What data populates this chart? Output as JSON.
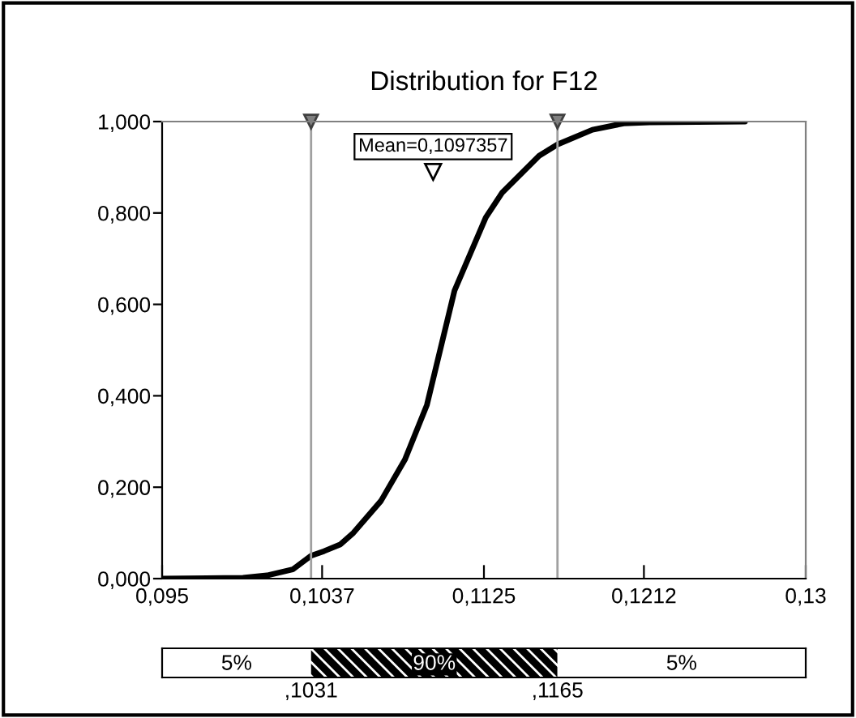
{
  "chart_data": [
    {
      "type": "line",
      "title": "Distribution for F12",
      "x": [
        0.095,
        0.0994,
        0.1007,
        0.1021,
        0.1031,
        0.1038,
        0.1047,
        0.1054,
        0.1069,
        0.1082,
        0.1094,
        0.1109,
        0.1126,
        0.1135,
        0.1155,
        0.1165,
        0.1184,
        0.1201,
        0.1215,
        0.1267
      ],
      "series": [
        {
          "color": "#000000",
          "values": [
            0.0,
            0.002,
            0.007,
            0.02,
            0.05,
            0.06,
            0.075,
            0.1,
            0.17,
            0.26,
            0.38,
            0.63,
            0.79,
            0.845,
            0.925,
            0.95,
            0.982,
            0.996,
            0.998,
            1.0
          ]
        }
      ],
      "xlim": [
        0.095,
        0.13
      ],
      "xticks": [
        {
          "value": 0.095,
          "label": "0,095"
        },
        {
          "value": 0.1037,
          "label": "0,1037"
        },
        {
          "value": 0.1125,
          "label": "0,1125"
        },
        {
          "value": 0.1212,
          "label": "0,1212"
        },
        {
          "value": 0.13,
          "label": "0,13"
        }
      ],
      "ylim": [
        0,
        1
      ],
      "yticks": [
        {
          "value": 0,
          "label": "0,000"
        },
        {
          "value": 0.2,
          "label": "0,200"
        },
        {
          "value": 0.4,
          "label": "0,400"
        },
        {
          "value": 0.6,
          "label": "0,600"
        },
        {
          "value": 0.8,
          "label": "0,800"
        },
        {
          "value": 1,
          "label": "1,000"
        }
      ],
      "ref_lines": [
        {
          "axis": "x",
          "value": 0.1031,
          "color": "#a0a0a0"
        },
        {
          "axis": "x",
          "value": 0.1165,
          "color": "#a0a0a0"
        }
      ],
      "annotations": [
        {
          "text": "Mean=0,1097357",
          "x": 0.1097357,
          "y": 0.89
        }
      ],
      "grid": false,
      "legend": false,
      "marker": "none",
      "line_style": "solid"
    },
    {
      "type": "other",
      "annotations": [
        "5%",
        "90%",
        "5%",
        ",1031",
        ",1165"
      ]
    }
  ]
}
